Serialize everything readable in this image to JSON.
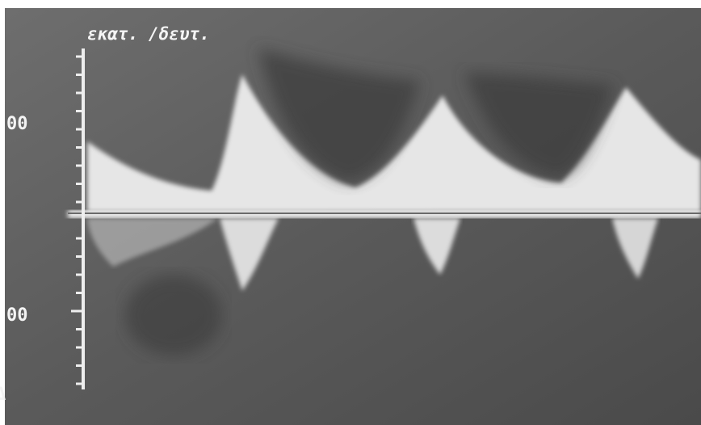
{
  "axis": {
    "unit_label": "εκατ. /δευτ.",
    "tick_labels": [
      "00",
      "00"
    ]
  },
  "corner_mark": "Δ"
}
